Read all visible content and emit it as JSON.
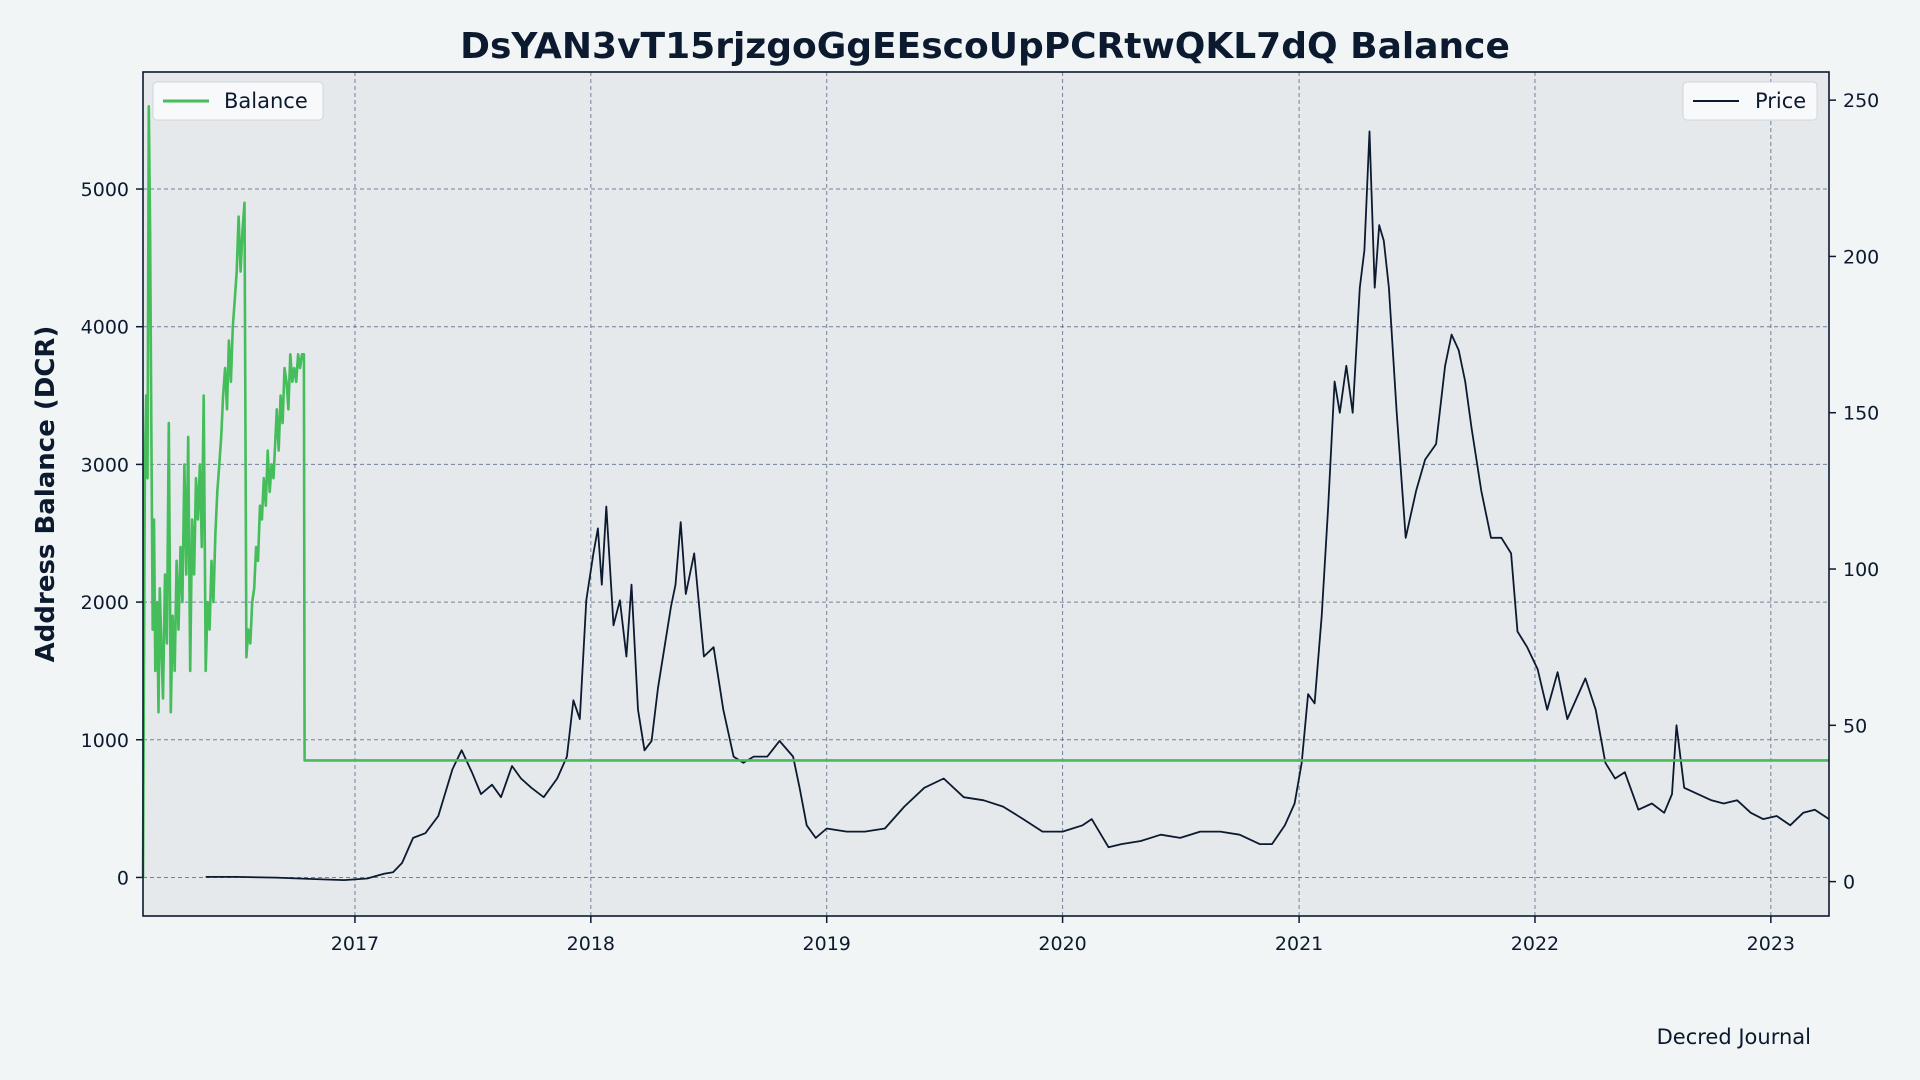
{
  "chart_data": {
    "type": "line",
    "title": "DsYAN3vT15rjzgoGgEEscoUpPCRtwQKL7dQ Balance",
    "ylabel": "Address Balance (DCR)",
    "y2label": "",
    "credit": "Decred Journal",
    "xlim": [
      "2016-02-08",
      "2023-04-01"
    ],
    "ylim": [
      -280,
      5850
    ],
    "y2lim": [
      -11,
      259
    ],
    "x_ticks": [
      "2017",
      "2018",
      "2019",
      "2020",
      "2021",
      "2022",
      "2023"
    ],
    "y_ticks": [
      0,
      1000,
      2000,
      3000,
      4000,
      5000
    ],
    "y2_ticks": [
      0,
      50,
      100,
      150,
      200,
      250
    ],
    "grid": true,
    "legend": [
      {
        "series": "Balance",
        "placement": "top-left"
      },
      {
        "series": "Price",
        "placement": "top-right"
      }
    ],
    "colors": {
      "balance": "#44bd5a",
      "price": "#0c1a30",
      "plot_bg": "#e5e9ec",
      "page_bg": "#f2f5f6"
    },
    "series": [
      {
        "name": "Balance",
        "axis": "left",
        "x": [
          "2016-02-08",
          "2016-02-11",
          "2016-02-13",
          "2016-02-15",
          "2016-02-17",
          "2016-02-19",
          "2016-02-21",
          "2016-02-23",
          "2016-02-25",
          "2016-02-27",
          "2016-03-01",
          "2016-03-03",
          "2016-03-05",
          "2016-03-08",
          "2016-03-10",
          "2016-03-13",
          "2016-03-16",
          "2016-03-19",
          "2016-03-22",
          "2016-03-25",
          "2016-03-28",
          "2016-03-31",
          "2016-04-03",
          "2016-04-06",
          "2016-04-09",
          "2016-04-12",
          "2016-04-15",
          "2016-04-18",
          "2016-04-21",
          "2016-04-24",
          "2016-04-27",
          "2016-04-30",
          "2016-05-03",
          "2016-05-06",
          "2016-05-09",
          "2016-05-12",
          "2016-05-15",
          "2016-05-18",
          "2016-05-21",
          "2016-05-24",
          "2016-05-27",
          "2016-05-30",
          "2016-06-02",
          "2016-06-05",
          "2016-06-08",
          "2016-06-11",
          "2016-06-14",
          "2016-06-17",
          "2016-06-20",
          "2016-06-23",
          "2016-06-26",
          "2016-06-29",
          "2016-07-02",
          "2016-07-05",
          "2016-07-08",
          "2016-07-11",
          "2016-07-14",
          "2016-07-17",
          "2016-07-20",
          "2016-07-23",
          "2016-07-26",
          "2016-07-29",
          "2016-08-01",
          "2016-08-04",
          "2016-08-07",
          "2016-08-10",
          "2016-08-13",
          "2016-08-16",
          "2016-08-19",
          "2016-08-22",
          "2016-08-25",
          "2016-08-28",
          "2016-08-31",
          "2016-09-02",
          "2016-09-05",
          "2016-09-08",
          "2016-09-11",
          "2016-09-14",
          "2016-09-17",
          "2016-09-20",
          "2016-09-23",
          "2016-09-26",
          "2016-09-29",
          "2016-10-02",
          "2016-10-05",
          "2016-10-08",
          "2016-10-11",
          "2016-10-14",
          "2016-10-15",
          "2023-04-01"
        ],
        "values": [
          0,
          3000,
          3500,
          2900,
          5600,
          4700,
          3200,
          1800,
          2600,
          1500,
          2000,
          1200,
          2100,
          1600,
          1300,
          2200,
          1700,
          3300,
          1200,
          1900,
          1500,
          2300,
          1800,
          2400,
          2000,
          3000,
          2200,
          3200,
          1500,
          2600,
          2200,
          2900,
          2600,
          3000,
          2400,
          3500,
          1500,
          2000,
          1800,
          2300,
          2000,
          2500,
          2800,
          3000,
          3200,
          3500,
          3700,
          3400,
          3900,
          3600,
          4000,
          4200,
          4400,
          4800,
          4400,
          4700,
          4900,
          1600,
          1800,
          1700,
          2000,
          2100,
          2400,
          2300,
          2700,
          2600,
          2900,
          2700,
          3100,
          2800,
          3000,
          2900,
          3200,
          3400,
          3100,
          3500,
          3300,
          3700,
          3600,
          3400,
          3800,
          3600,
          3700,
          3600,
          3800,
          3700,
          3800,
          3800,
          850,
          850
        ]
      },
      {
        "name": "Price",
        "axis": "right",
        "x": [
          "2016-05-15",
          "2016-07-01",
          "2016-09-01",
          "2016-11-01",
          "2016-12-15",
          "2017-01-20",
          "2017-02-15",
          "2017-03-01",
          "2017-03-15",
          "2017-04-01",
          "2017-04-20",
          "2017-05-10",
          "2017-06-01",
          "2017-06-15",
          "2017-07-01",
          "2017-07-15",
          "2017-08-01",
          "2017-08-15",
          "2017-09-01",
          "2017-09-15",
          "2017-10-01",
          "2017-10-20",
          "2017-11-10",
          "2017-11-25",
          "2017-12-05",
          "2017-12-15",
          "2017-12-25",
          "2018-01-05",
          "2018-01-12",
          "2018-01-18",
          "2018-01-25",
          "2018-02-05",
          "2018-02-15",
          "2018-02-25",
          "2018-03-05",
          "2018-03-15",
          "2018-03-25",
          "2018-04-05",
          "2018-04-15",
          "2018-04-25",
          "2018-05-05",
          "2018-05-12",
          "2018-05-20",
          "2018-05-28",
          "2018-06-10",
          "2018-06-25",
          "2018-07-10",
          "2018-07-25",
          "2018-08-10",
          "2018-08-25",
          "2018-09-10",
          "2018-10-01",
          "2018-10-20",
          "2018-11-10",
          "2018-11-20",
          "2018-12-01",
          "2018-12-15",
          "2019-01-01",
          "2019-02-01",
          "2019-03-01",
          "2019-04-01",
          "2019-05-01",
          "2019-06-01",
          "2019-07-01",
          "2019-08-01",
          "2019-09-01",
          "2019-10-01",
          "2019-11-01",
          "2019-12-01",
          "2020-01-01",
          "2020-02-01",
          "2020-02-15",
          "2020-03-12",
          "2020-04-01",
          "2020-05-01",
          "2020-06-01",
          "2020-07-01",
          "2020-08-01",
          "2020-09-01",
          "2020-10-01",
          "2020-11-01",
          "2020-11-20",
          "2020-12-10",
          "2020-12-25",
          "2021-01-05",
          "2021-01-15",
          "2021-01-25",
          "2021-02-05",
          "2021-02-15",
          "2021-02-25",
          "2021-03-05",
          "2021-03-15",
          "2021-03-25",
          "2021-04-05",
          "2021-04-12",
          "2021-04-20",
          "2021-04-28",
          "2021-05-05",
          "2021-05-12",
          "2021-05-20",
          "2021-06-01",
          "2021-06-15",
          "2021-07-01",
          "2021-07-15",
          "2021-08-01",
          "2021-08-15",
          "2021-08-25",
          "2021-09-05",
          "2021-09-15",
          "2021-09-25",
          "2021-10-10",
          "2021-10-25",
          "2021-11-10",
          "2021-11-25",
          "2021-12-05",
          "2021-12-20",
          "2022-01-05",
          "2022-01-20",
          "2022-02-05",
          "2022-02-20",
          "2022-03-05",
          "2022-03-20",
          "2022-04-05",
          "2022-04-20",
          "2022-05-05",
          "2022-05-20",
          "2022-06-10",
          "2022-07-01",
          "2022-07-20",
          "2022-08-01",
          "2022-08-08",
          "2022-08-20",
          "2022-09-10",
          "2022-10-01",
          "2022-10-20",
          "2022-11-10",
          "2022-12-01",
          "2022-12-20",
          "2023-01-10",
          "2023-01-31",
          "2023-02-20",
          "2023-03-10",
          "2023-04-01"
        ],
        "values": [
          1.5,
          1.5,
          1.3,
          0.8,
          0.5,
          1.0,
          2.5,
          3.0,
          6.0,
          14.0,
          15.5,
          21.0,
          36.0,
          42.0,
          35.0,
          28.0,
          31.0,
          27.0,
          37.0,
          33.0,
          30.0,
          27.0,
          33.0,
          40.0,
          58.0,
          52.0,
          90.0,
          105.0,
          113.0,
          95.0,
          120.0,
          82.0,
          90.0,
          72.0,
          95.0,
          55.0,
          42.0,
          45.0,
          62.0,
          75.0,
          88.0,
          95.0,
          115.0,
          92.0,
          105.0,
          72.0,
          75.0,
          55.0,
          40.0,
          38.0,
          40.0,
          40.0,
          45.0,
          40.0,
          30.0,
          18.0,
          14.0,
          17.0,
          16.0,
          16.0,
          17.0,
          24.0,
          30.0,
          33.0,
          27.0,
          26.0,
          24.0,
          20.0,
          16.0,
          16.0,
          18.0,
          20.0,
          11.0,
          12.0,
          13.0,
          15.0,
          14.0,
          16.0,
          16.0,
          15.0,
          12.0,
          12.0,
          18.0,
          25.0,
          38.0,
          60.0,
          57.0,
          85.0,
          120.0,
          160.0,
          150.0,
          165.0,
          150.0,
          190.0,
          202.0,
          240.0,
          190.0,
          210.0,
          205.0,
          190.0,
          150.0,
          110.0,
          125.0,
          135.0,
          140.0,
          165.0,
          175.0,
          170.0,
          160.0,
          145.0,
          125.0,
          110.0,
          110.0,
          105.0,
          80.0,
          75.0,
          68.0,
          55.0,
          67.0,
          52.0,
          58.0,
          65.0,
          55.0,
          38.0,
          33.0,
          35.0,
          23.0,
          25.0,
          22.0,
          28.0,
          50.0,
          30.0,
          28.0,
          26.0,
          25.0,
          26.0,
          22.0,
          20.0,
          21.0,
          18.0,
          22.0,
          23.0,
          20.0
        ]
      }
    ]
  }
}
